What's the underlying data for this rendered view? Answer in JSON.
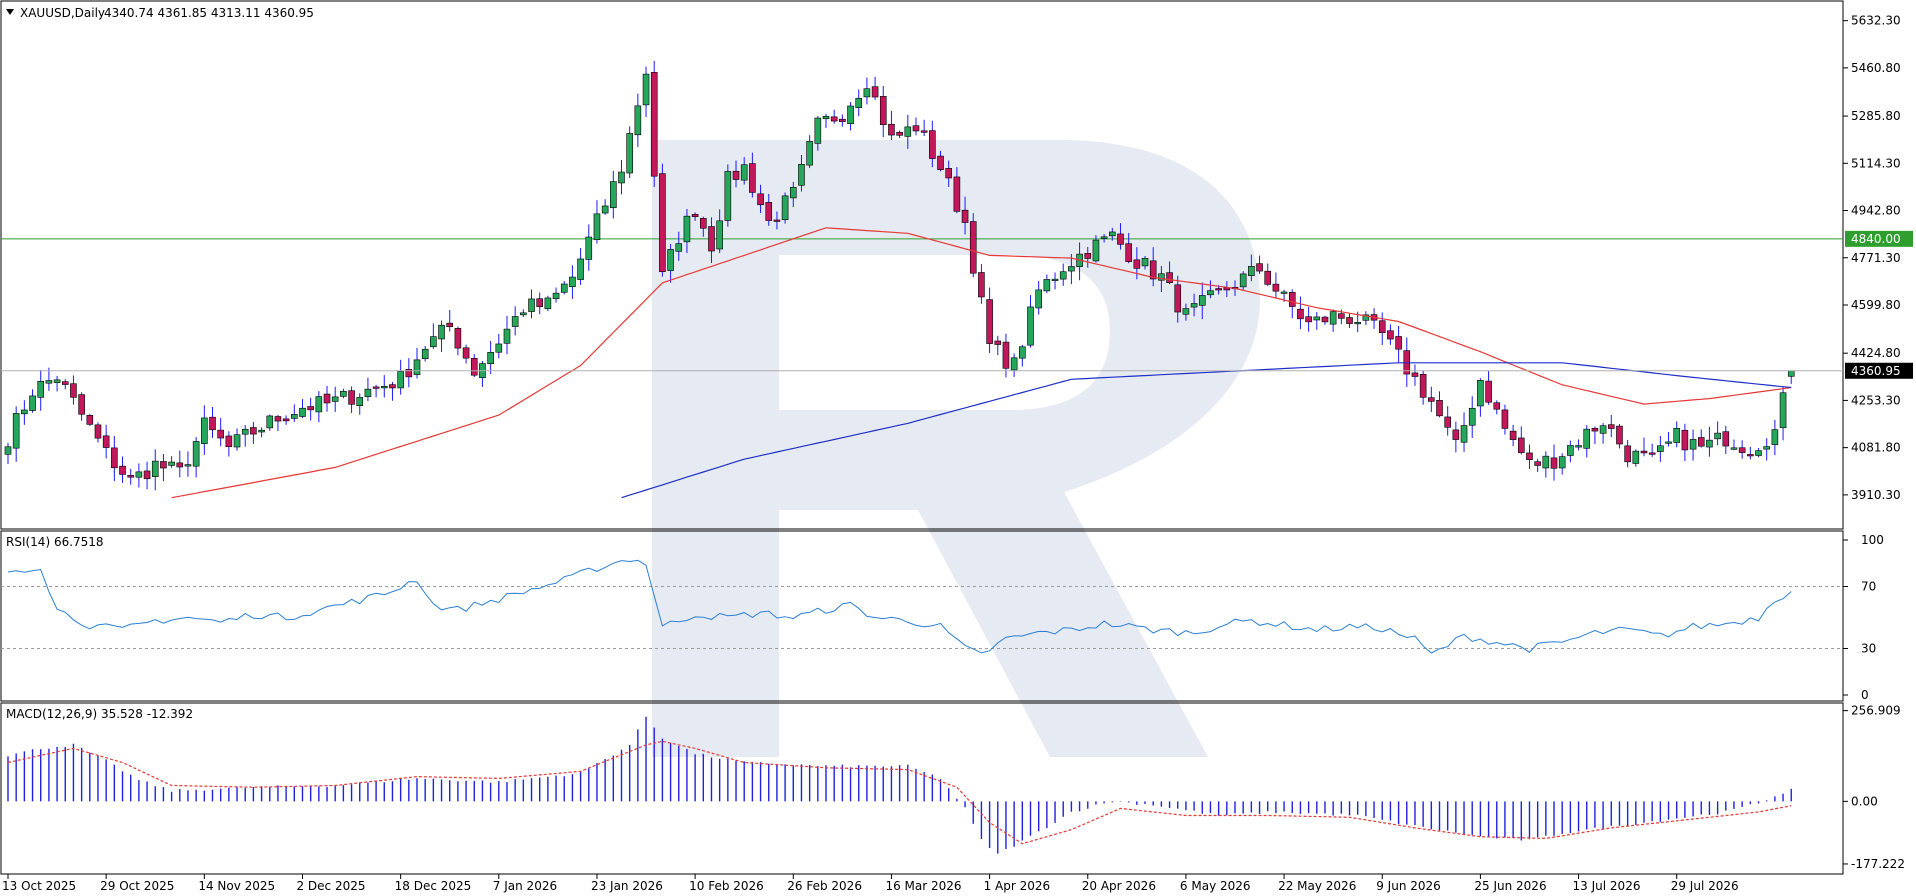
{
  "chart_data": [
    {
      "type": "candlestick",
      "header": "XAUUSD,Daily",
      "ohlc_readout": "4340.74 4361.85 4313.11 4360.95",
      "ylim": [
        3790,
        5700
      ],
      "y_ticks": [
        "5632.30",
        "5460.80",
        "5285.80",
        "5114.30",
        "4942.80",
        "4771.30",
        "4599.80",
        "4424.80",
        "4253.30",
        "4081.80",
        "3910.30"
      ],
      "last_price_label": "4360.95",
      "level_label": "4840.00",
      "level_value": 4840,
      "colors": {
        "bull": "#26a65b",
        "bear": "#c2185b",
        "wick": "#1a1aff",
        "ma_fast": "#e53935",
        "ma_slow": "#1e2fc8",
        "level": "#2e9e2e",
        "price_line": "#b0b0b0"
      },
      "anchors": [
        [
          0,
          4120
        ],
        [
          3,
          4290
        ],
        [
          6,
          4340
        ],
        [
          9,
          4200
        ],
        [
          12,
          4060
        ],
        [
          15,
          3960
        ],
        [
          18,
          4020
        ],
        [
          21,
          3990
        ],
        [
          24,
          4160
        ],
        [
          27,
          4080
        ],
        [
          30,
          4140
        ],
        [
          33,
          4190
        ],
        [
          36,
          4230
        ],
        [
          39,
          4240
        ],
        [
          42,
          4270
        ],
        [
          45,
          4300
        ],
        [
          48,
          4330
        ],
        [
          51,
          4450
        ],
        [
          54,
          4520
        ],
        [
          57,
          4360
        ],
        [
          60,
          4470
        ],
        [
          63,
          4590
        ],
        [
          66,
          4600
        ],
        [
          69,
          4700
        ],
        [
          72,
          4900
        ],
        [
          75,
          5100
        ],
        [
          78,
          5450
        ],
        [
          80,
          4700
        ],
        [
          82,
          4850
        ],
        [
          84,
          4950
        ],
        [
          86,
          4820
        ],
        [
          88,
          5050
        ],
        [
          90,
          5100
        ],
        [
          93,
          4900
        ],
        [
          96,
          5000
        ],
        [
          99,
          5250
        ],
        [
          102,
          5300
        ],
        [
          105,
          5420
        ],
        [
          108,
          5200
        ],
        [
          111,
          5250
        ],
        [
          114,
          5100
        ],
        [
          117,
          4900
        ],
        [
          120,
          4450
        ],
        [
          123,
          4380
        ],
        [
          126,
          4650
        ],
        [
          129,
          4740
        ],
        [
          132,
          4800
        ],
        [
          135,
          4850
        ],
        [
          138,
          4760
        ],
        [
          141,
          4700
        ],
        [
          144,
          4560
        ],
        [
          147,
          4620
        ],
        [
          150,
          4680
        ],
        [
          153,
          4730
        ],
        [
          156,
          4620
        ],
        [
          159,
          4530
        ],
        [
          162,
          4560
        ],
        [
          165,
          4550
        ],
        [
          168,
          4490
        ],
        [
          171,
          4370
        ],
        [
          174,
          4250
        ],
        [
          177,
          4080
        ],
        [
          180,
          4330
        ],
        [
          183,
          4150
        ],
        [
          186,
          4020
        ],
        [
          189,
          4040
        ],
        [
          192,
          4110
        ],
        [
          195,
          4180
        ],
        [
          198,
          4060
        ],
        [
          201,
          4030
        ],
        [
          204,
          4120
        ],
        [
          207,
          4080
        ],
        [
          210,
          4120
        ],
        [
          213,
          4080
        ],
        [
          216,
          4140
        ],
        [
          218,
          4360
        ]
      ],
      "ma_fast_anchors": [
        [
          20,
          3900
        ],
        [
          40,
          4010
        ],
        [
          60,
          4200
        ],
        [
          70,
          4380
        ],
        [
          80,
          4680
        ],
        [
          90,
          4780
        ],
        [
          100,
          4880
        ],
        [
          110,
          4860
        ],
        [
          120,
          4780
        ],
        [
          130,
          4770
        ],
        [
          140,
          4700
        ],
        [
          150,
          4660
        ],
        [
          160,
          4590
        ],
        [
          170,
          4540
        ],
        [
          180,
          4430
        ],
        [
          190,
          4310
        ],
        [
          200,
          4240
        ],
        [
          208,
          4260
        ],
        [
          218,
          4300
        ]
      ],
      "ma_slow_anchors": [
        [
          75,
          3900
        ],
        [
          90,
          4040
        ],
        [
          110,
          4170
        ],
        [
          130,
          4330
        ],
        [
          150,
          4360
        ],
        [
          170,
          4390
        ],
        [
          190,
          4390
        ],
        [
          205,
          4340
        ],
        [
          218,
          4300
        ]
      ]
    },
    {
      "type": "line",
      "header": "RSI(14) 66.7518",
      "ylim": [
        0,
        100
      ],
      "y_ticks": [
        "100",
        "70",
        "30",
        "0"
      ],
      "levels": [
        70,
        30
      ],
      "color": "#2a7fd4",
      "anchors": [
        [
          0,
          80
        ],
        [
          4,
          83
        ],
        [
          6,
          55
        ],
        [
          10,
          45
        ],
        [
          14,
          42
        ],
        [
          18,
          48
        ],
        [
          22,
          50
        ],
        [
          26,
          47
        ],
        [
          30,
          52
        ],
        [
          34,
          50
        ],
        [
          38,
          55
        ],
        [
          42,
          60
        ],
        [
          46,
          65
        ],
        [
          50,
          75
        ],
        [
          52,
          58
        ],
        [
          55,
          55
        ],
        [
          60,
          62
        ],
        [
          64,
          68
        ],
        [
          68,
          74
        ],
        [
          72,
          82
        ],
        [
          76,
          88
        ],
        [
          78,
          85
        ],
        [
          80,
          44
        ],
        [
          84,
          52
        ],
        [
          88,
          50
        ],
        [
          92,
          53
        ],
        [
          96,
          50
        ],
        [
          100,
          55
        ],
        [
          103,
          58
        ],
        [
          106,
          50
        ],
        [
          110,
          48
        ],
        [
          114,
          44
        ],
        [
          117,
          30
        ],
        [
          119,
          26
        ],
        [
          122,
          36
        ],
        [
          126,
          40
        ],
        [
          130,
          42
        ],
        [
          134,
          46
        ],
        [
          136,
          45
        ],
        [
          140,
          42
        ],
        [
          145,
          40
        ],
        [
          148,
          45
        ],
        [
          152,
          48
        ],
        [
          156,
          45
        ],
        [
          160,
          42
        ],
        [
          164,
          44
        ],
        [
          168,
          43
        ],
        [
          172,
          36
        ],
        [
          174,
          26
        ],
        [
          178,
          38
        ],
        [
          182,
          34
        ],
        [
          186,
          30
        ],
        [
          190,
          34
        ],
        [
          194,
          40
        ],
        [
          198,
          42
        ],
        [
          202,
          38
        ],
        [
          206,
          44
        ],
        [
          210,
          46
        ],
        [
          214,
          50
        ],
        [
          216,
          62
        ],
        [
          218,
          66.75
        ]
      ]
    },
    {
      "type": "histogram",
      "header": "MACD(12,26,9) 35.528 -12.392",
      "ylim": [
        -200,
        270
      ],
      "y_ticks": [
        "256.909",
        "0.00",
        "-177.222"
      ],
      "y_tick_values": [
        256.909,
        0,
        -177.222
      ],
      "bar_color": "#2020e0",
      "signal_color": "#e53935",
      "macd_anchors": [
        [
          0,
          130
        ],
        [
          4,
          150
        ],
        [
          8,
          160
        ],
        [
          12,
          115
        ],
        [
          16,
          60
        ],
        [
          20,
          30
        ],
        [
          30,
          40
        ],
        [
          40,
          45
        ],
        [
          50,
          65
        ],
        [
          60,
          55
        ],
        [
          70,
          80
        ],
        [
          76,
          160
        ],
        [
          78,
          240
        ],
        [
          80,
          180
        ],
        [
          84,
          135
        ],
        [
          90,
          110
        ],
        [
          100,
          100
        ],
        [
          110,
          100
        ],
        [
          114,
          65
        ],
        [
          117,
          -20
        ],
        [
          119,
          -110
        ],
        [
          121,
          -150
        ],
        [
          125,
          -100
        ],
        [
          130,
          -30
        ],
        [
          135,
          0
        ],
        [
          140,
          -10
        ],
        [
          148,
          -40
        ],
        [
          155,
          -30
        ],
        [
          165,
          -40
        ],
        [
          172,
          -70
        ],
        [
          180,
          -100
        ],
        [
          186,
          -110
        ],
        [
          190,
          -90
        ],
        [
          200,
          -60
        ],
        [
          210,
          -30
        ],
        [
          214,
          -5
        ],
        [
          218,
          35.528
        ]
      ],
      "signal_anchors": [
        [
          0,
          110
        ],
        [
          8,
          150
        ],
        [
          14,
          110
        ],
        [
          20,
          45
        ],
        [
          30,
          40
        ],
        [
          40,
          45
        ],
        [
          50,
          70
        ],
        [
          60,
          65
        ],
        [
          70,
          85
        ],
        [
          78,
          160
        ],
        [
          80,
          170
        ],
        [
          84,
          150
        ],
        [
          90,
          110
        ],
        [
          100,
          95
        ],
        [
          110,
          90
        ],
        [
          116,
          40
        ],
        [
          120,
          -60
        ],
        [
          124,
          -120
        ],
        [
          130,
          -80
        ],
        [
          136,
          -20
        ],
        [
          144,
          -40
        ],
        [
          154,
          -40
        ],
        [
          164,
          -45
        ],
        [
          172,
          -75
        ],
        [
          180,
          -100
        ],
        [
          188,
          -105
        ],
        [
          196,
          -75
        ],
        [
          206,
          -50
        ],
        [
          214,
          -30
        ],
        [
          218,
          -12.392
        ]
      ]
    }
  ],
  "x_axis": {
    "labels": [
      "13 Oct 2025",
      "29 Oct 2025",
      "14 Nov 2025",
      "2 Dec 2025",
      "18 Dec 2025",
      "7 Jan 2026",
      "23 Jan 2026",
      "10 Feb 2026",
      "26 Feb 2026",
      "16 Mar 2026",
      "1 Apr 2026",
      "20 Apr 2026",
      "6 May 2026",
      "22 May 2026",
      "9 Jun 2026",
      "25 Jun 2026",
      "13 Jul 2026",
      "29 Jul 2026"
    ],
    "label_index": [
      0,
      12,
      24,
      36,
      48,
      60,
      72,
      84,
      96,
      108,
      120,
      132,
      144,
      156,
      168,
      180,
      192,
      204
    ],
    "bar_count": 219
  }
}
